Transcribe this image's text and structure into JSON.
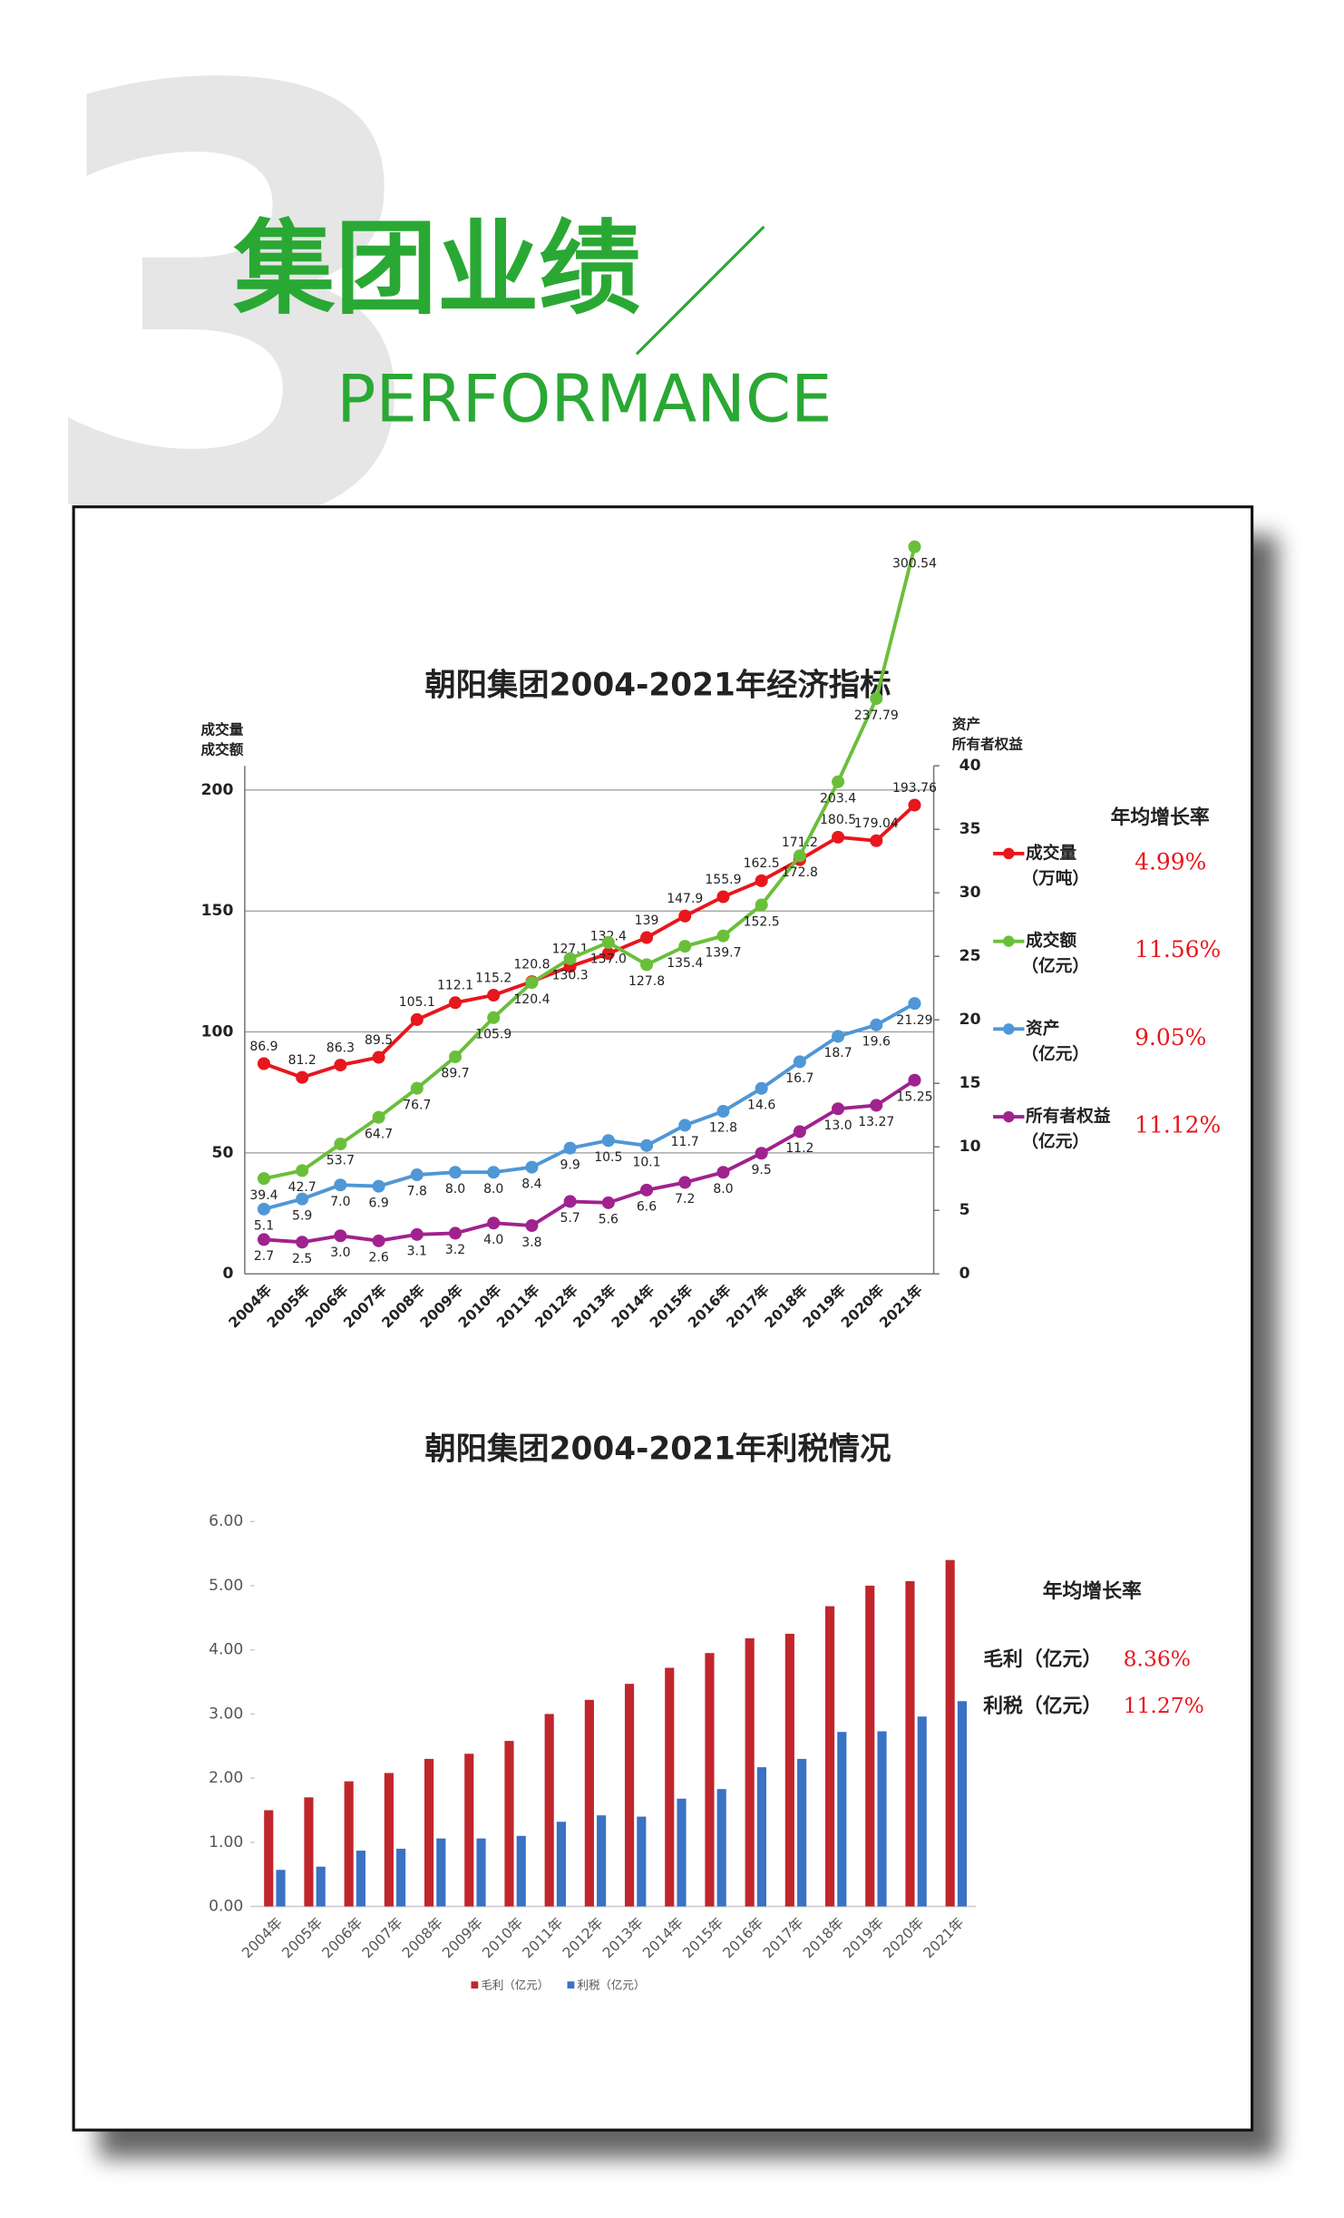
{
  "header": {
    "number": "3",
    "title": "集团业绩",
    "subtitle": "PERFORMANCE"
  },
  "chart_data": [
    {
      "type": "line",
      "title": "朝阳集团2004-2021年经济指标",
      "y_label": [
        "成交量",
        "成交额"
      ],
      "y2_label": [
        "资产",
        "所有者权益"
      ],
      "legend_title": "年均增长率",
      "categories": [
        "2004年",
        "2005年",
        "2006年",
        "2007年",
        "2008年",
        "2009年",
        "2010年",
        "2011年",
        "2012年",
        "2013年",
        "2014年",
        "2015年",
        "2016年",
        "2017年",
        "2018年",
        "2019年",
        "2020年",
        "2021年"
      ],
      "ylim": [
        0,
        210
      ],
      "yticks": [
        0,
        50,
        100,
        150,
        200
      ],
      "y2lim": [
        0,
        40
      ],
      "y2ticks": [
        0,
        5,
        10,
        15,
        20,
        25,
        30,
        35,
        40
      ],
      "grid": true,
      "series": [
        {
          "name": "成交量",
          "unit": "（万吨）",
          "growth": "4.99%",
          "color": "#e8161d",
          "axis": "y",
          "values": [
            86.9,
            81.2,
            86.3,
            89.5,
            105.1,
            112.1,
            115.2,
            120.8,
            127.1,
            132.4,
            139.0,
            147.9,
            155.9,
            162.5,
            171.2,
            180.5,
            179.04,
            193.76
          ]
        },
        {
          "name": "成交额",
          "unit": "（亿元）",
          "growth": "11.56%",
          "color": "#6abf3a",
          "axis": "y",
          "values": [
            39.4,
            42.7,
            53.7,
            64.7,
            76.7,
            89.7,
            105.9,
            120.4,
            130.3,
            137.0,
            127.8,
            135.4,
            139.7,
            152.5,
            172.8,
            203.4,
            237.79,
            300.54
          ],
          "value_labels": [
            "39.4",
            "42.7",
            "53.7",
            "64.7",
            "76.7",
            "89.7",
            "105.9",
            "120.4",
            "130.3",
            "137.0",
            "127.8",
            "135.4",
            "139.7",
            "152.5",
            "172.8",
            "203.4",
            "237.79",
            "300.54"
          ]
        },
        {
          "name": "资产",
          "unit": "（亿元）",
          "growth": "9.05%",
          "color": "#4f97d6",
          "axis": "y2",
          "values": [
            5.1,
            5.9,
            7.0,
            6.9,
            7.8,
            8.0,
            8.0,
            8.4,
            9.9,
            10.5,
            10.1,
            11.7,
            12.8,
            14.6,
            16.7,
            18.7,
            19.6,
            21.29
          ],
          "value_labels": [
            "5.1",
            "5.9",
            "7.0",
            "6.9",
            "7.8",
            "8.0",
            "8.0",
            "8.4",
            "9.9",
            "10.5",
            "10.1",
            "11.7",
            "12.8",
            "14.6",
            "16.7",
            "18.7",
            "19.6",
            "21.29"
          ]
        },
        {
          "name": "所有者权益",
          "unit": "（亿元）",
          "growth": "11.12%",
          "color": "#a0228e",
          "axis": "y2",
          "values": [
            2.7,
            2.5,
            3.0,
            2.6,
            3.1,
            3.2,
            4.0,
            3.8,
            5.7,
            5.6,
            6.6,
            7.2,
            8.0,
            9.5,
            11.2,
            13.0,
            13.27,
            15.25
          ],
          "value_labels": [
            "2.7",
            "2.5",
            "3.0",
            "2.6",
            "3.1",
            "3.2",
            "4.0",
            "3.8",
            "5.7",
            "5.6",
            "6.6",
            "7.2",
            "8.0",
            "9.5",
            "11.2",
            "13.0",
            "13.27",
            "15.25"
          ]
        }
      ]
    },
    {
      "type": "bar",
      "title": "朝阳集团2004-2021年利税情况",
      "legend_title": "年均增长率",
      "categories": [
        "2004年",
        "2005年",
        "2006年",
        "2007年",
        "2008年",
        "2009年",
        "2010年",
        "2011年",
        "2012年",
        "2013年",
        "2014年",
        "2015年",
        "2016年",
        "2017年",
        "2018年",
        "2019年",
        "2020年",
        "2021年"
      ],
      "ylim": [
        0,
        6
      ],
      "yticks": [
        {
          "value": 0,
          "label": "0.00"
        },
        {
          "value": 1,
          "label": "1.00"
        },
        {
          "value": 2,
          "label": "2.00"
        },
        {
          "value": 3,
          "label": "3.00"
        },
        {
          "value": 4,
          "label": "4.00"
        },
        {
          "value": 5,
          "label": "5.00"
        },
        {
          "value": 6,
          "label": "6.00"
        }
      ],
      "grid": false,
      "series": [
        {
          "name": "毛利（亿元）",
          "growth": "8.36%",
          "color": "#c0262c",
          "values": [
            1.5,
            1.7,
            1.95,
            2.08,
            2.3,
            2.38,
            2.58,
            3.0,
            3.22,
            3.47,
            3.72,
            3.95,
            4.18,
            4.25,
            4.68,
            5.0,
            5.07,
            5.4
          ]
        },
        {
          "name": "利税（亿元）",
          "growth": "11.27%",
          "color": "#3a72c4",
          "values": [
            0.57,
            0.62,
            0.87,
            0.9,
            1.06,
            1.06,
            1.1,
            1.32,
            1.42,
            1.4,
            1.68,
            1.83,
            2.17,
            2.3,
            2.72,
            2.73,
            2.96,
            3.2
          ]
        }
      ]
    }
  ]
}
